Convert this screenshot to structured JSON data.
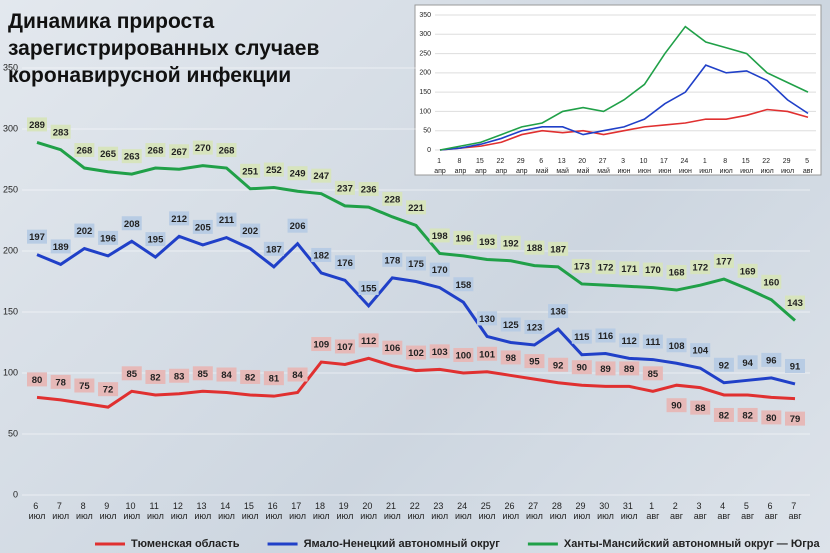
{
  "chart_data": [
    {
      "type": "line",
      "title": "Динамика прироста зарегистрированных случаев коронавирусной инфекции",
      "categories": [
        "6 июл",
        "7 июл",
        "8 июл",
        "9 июл",
        "10 июл",
        "11 июл",
        "12 июл",
        "13 июл",
        "14 июл",
        "15 июл",
        "16 июл",
        "17 июл",
        "18 июл",
        "19 июл",
        "20 июл",
        "21 июл",
        "22 июл",
        "23 июл",
        "24 июл",
        "25 июл",
        "26 июл",
        "27 июл",
        "28 июл",
        "29 июл",
        "30 июл",
        "31 июл",
        "1 авг",
        "2 авг",
        "3 авг",
        "4 авг",
        "5 авг",
        "6 авг",
        "7 авг"
      ],
      "ylim": [
        0,
        350
      ],
      "yticks": [
        0,
        50,
        100,
        150,
        200,
        250,
        300,
        350
      ],
      "series": [
        {
          "name": "Тюменская область",
          "color": "#e03030",
          "values": [
            80,
            78,
            75,
            72,
            85,
            82,
            83,
            85,
            84,
            82,
            81,
            84,
            109,
            107,
            112,
            106,
            102,
            103,
            100,
            101,
            98,
            95,
            92,
            90,
            89,
            89,
            85,
            90,
            88,
            82,
            82,
            80,
            79
          ]
        },
        {
          "name": "Ямало-Ненецкий автономный округ",
          "color": "#2040c8",
          "values": [
            197,
            189,
            202,
            196,
            208,
            195,
            212,
            205,
            211,
            202,
            187,
            206,
            182,
            176,
            155,
            178,
            175,
            170,
            158,
            130,
            125,
            123,
            136,
            115,
            116,
            112,
            111,
            108,
            104,
            92,
            94,
            96,
            91
          ]
        },
        {
          "name": "Ханты-Мансийский автономный округ — Югра",
          "color": "#20a048",
          "values": [
            289,
            283,
            268,
            265,
            263,
            268,
            267,
            270,
            268,
            251,
            252,
            249,
            247,
            237,
            236,
            228,
            221,
            198,
            196,
            193,
            192,
            188,
            187,
            173,
            172,
            171,
            170,
            168,
            172,
            177,
            169,
            160,
            143
          ]
        }
      ]
    },
    {
      "type": "line",
      "categories": [
        "1 апр",
        "8 апр",
        "15 апр",
        "22 апр",
        "29 апр",
        "6 май",
        "13 май",
        "20 май",
        "27 май",
        "3 июн",
        "10 июн",
        "17 июн",
        "24 июн",
        "1 июл",
        "8 июл",
        "15 июл",
        "22 июл",
        "29 июл",
        "5 авг"
      ],
      "ylim": [
        0,
        350
      ],
      "yticks": [
        0,
        50,
        100,
        150,
        200,
        250,
        300,
        350
      ],
      "series": [
        {
          "color": "#e03030",
          "values": [
            0,
            5,
            10,
            20,
            40,
            50,
            45,
            50,
            40,
            50,
            60,
            65,
            70,
            80,
            80,
            90,
            105,
            100,
            85
          ]
        },
        {
          "color": "#2040c8",
          "values": [
            0,
            5,
            15,
            30,
            50,
            60,
            60,
            40,
            50,
            60,
            80,
            120,
            150,
            220,
            200,
            205,
            180,
            130,
            95
          ]
        },
        {
          "color": "#20a048",
          "values": [
            0,
            10,
            20,
            40,
            60,
            70,
            100,
            110,
            100,
            130,
            170,
            250,
            320,
            280,
            265,
            250,
            200,
            175,
            150
          ]
        }
      ]
    }
  ]
}
